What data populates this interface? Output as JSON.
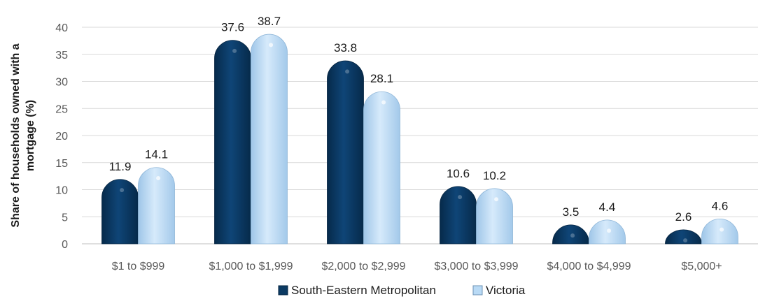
{
  "chart_data": {
    "type": "bar",
    "title": "",
    "xlabel": "",
    "ylabel": "Share of households owned with a mortgage (%)",
    "ylabel_lines": [
      "Share of households owned with a",
      "mortgage (%)"
    ],
    "ylim": [
      0,
      40
    ],
    "yticks": [
      0,
      5,
      10,
      15,
      20,
      25,
      30,
      35,
      40
    ],
    "grid": true,
    "legend_position": "bottom",
    "categories": [
      "$1 to $999",
      "$1,000 to $1,999",
      "$2,000 to $2,999",
      "$3,000 to $3,999",
      "$4,000 to $4,999",
      "$5,000+"
    ],
    "series": [
      {
        "name": "South-Eastern Metropolitan",
        "values": [
          11.9,
          37.6,
          33.8,
          10.6,
          3.5,
          2.6
        ],
        "color": "#0b3a63"
      },
      {
        "name": "Victoria",
        "values": [
          14.1,
          38.7,
          28.1,
          10.2,
          4.4,
          4.6
        ],
        "color": "#b9daf5"
      }
    ]
  }
}
